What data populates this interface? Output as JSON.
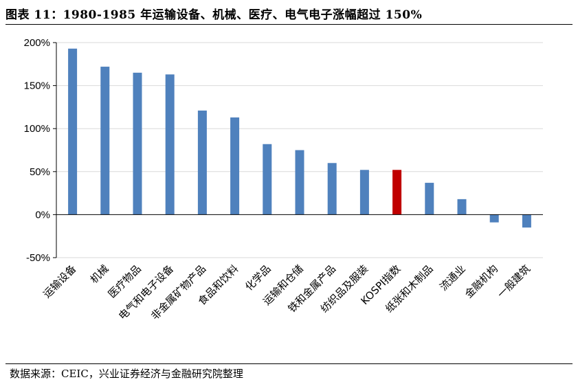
{
  "figure": {
    "title": "图表 11：1980-1985 年运输设备、机械、医疗、电气电子涨幅超过 150%",
    "source": "数据来源：CEIC，兴业证券经济与金融研究院整理"
  },
  "chart_data": {
    "type": "bar",
    "title": "",
    "xlabel": "",
    "ylabel": "",
    "categories": [
      "运输设备",
      "机械",
      "医疗物品",
      "电气和电子设备",
      "非金属矿物产品",
      "食品和饮料",
      "化学品",
      "运输和仓储",
      "铁和金属产品",
      "纺织品及服装",
      "KOSPI指数",
      "纸张和木制品",
      "流通业",
      "金融机构",
      "一般建筑"
    ],
    "values": [
      193,
      172,
      165,
      163,
      121,
      113,
      82,
      75,
      60,
      52,
      52,
      37,
      18,
      -9,
      -15
    ],
    "ylim": [
      -50,
      200
    ],
    "yticks": [
      -50,
      0,
      50,
      100,
      150,
      200
    ],
    "ytick_labels": [
      "-50%",
      "0%",
      "50%",
      "100%",
      "150%",
      "200%"
    ],
    "grid": true,
    "legend": "none",
    "colors": {
      "bar": "#4f81bd",
      "highlight": "#c00000",
      "grid": "#d9d9d9",
      "axis": "#000000"
    },
    "highlight_index": 10
  }
}
